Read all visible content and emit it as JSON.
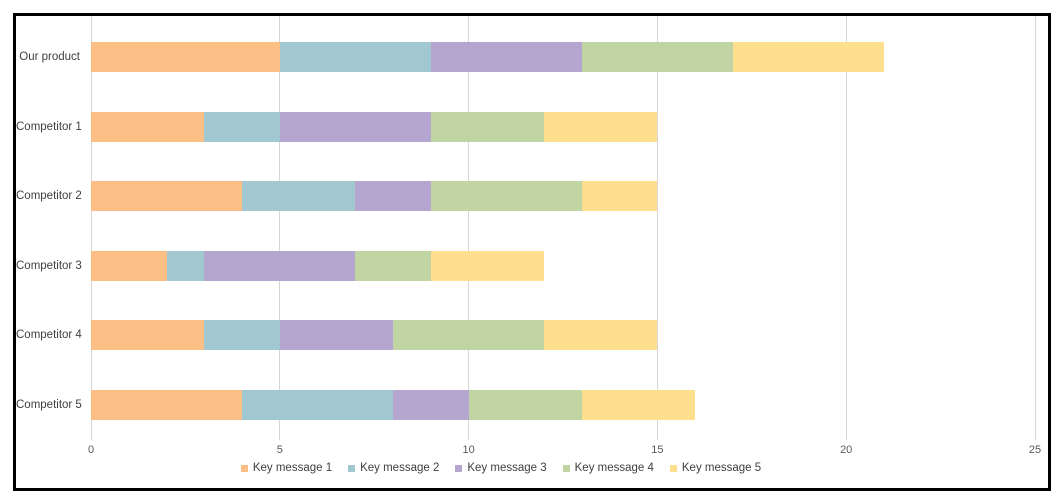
{
  "chart_data": {
    "type": "bar",
    "orientation": "horizontal",
    "stacked": true,
    "title": "",
    "xlabel": "",
    "ylabel": "",
    "categories": [
      "Our product",
      "Competitor 1",
      "Competitor 2",
      "Competitor 3",
      "Competitor 4",
      "Competitor 5"
    ],
    "series": [
      {
        "name": "Key message 1",
        "color": "#fbbf86",
        "values": [
          5,
          3,
          4,
          2,
          3,
          4
        ]
      },
      {
        "name": "Key message 2",
        "color": "#a1c8d1",
        "values": [
          4,
          2,
          3,
          1,
          2,
          4
        ]
      },
      {
        "name": "Key message 3",
        "color": "#b4a6ce",
        "values": [
          4,
          4,
          2,
          4,
          3,
          2
        ]
      },
      {
        "name": "Key message 4",
        "color": "#c1d5a4",
        "values": [
          4,
          3,
          4,
          2,
          4,
          3
        ]
      },
      {
        "name": "Key message 5",
        "color": "#fddf8d",
        "values": [
          4,
          3,
          2,
          3,
          3,
          3
        ]
      }
    ],
    "totals": [
      21,
      15,
      15,
      12,
      15,
      16
    ],
    "xlim": [
      0,
      25
    ],
    "x_ticks": [
      "0",
      "5",
      "10",
      "15",
      "20",
      "25"
    ],
    "grid": "vertical-only",
    "gridline_color": "#d6d6d6",
    "legend_position": "bottom",
    "frame_border_color": "#000000"
  }
}
